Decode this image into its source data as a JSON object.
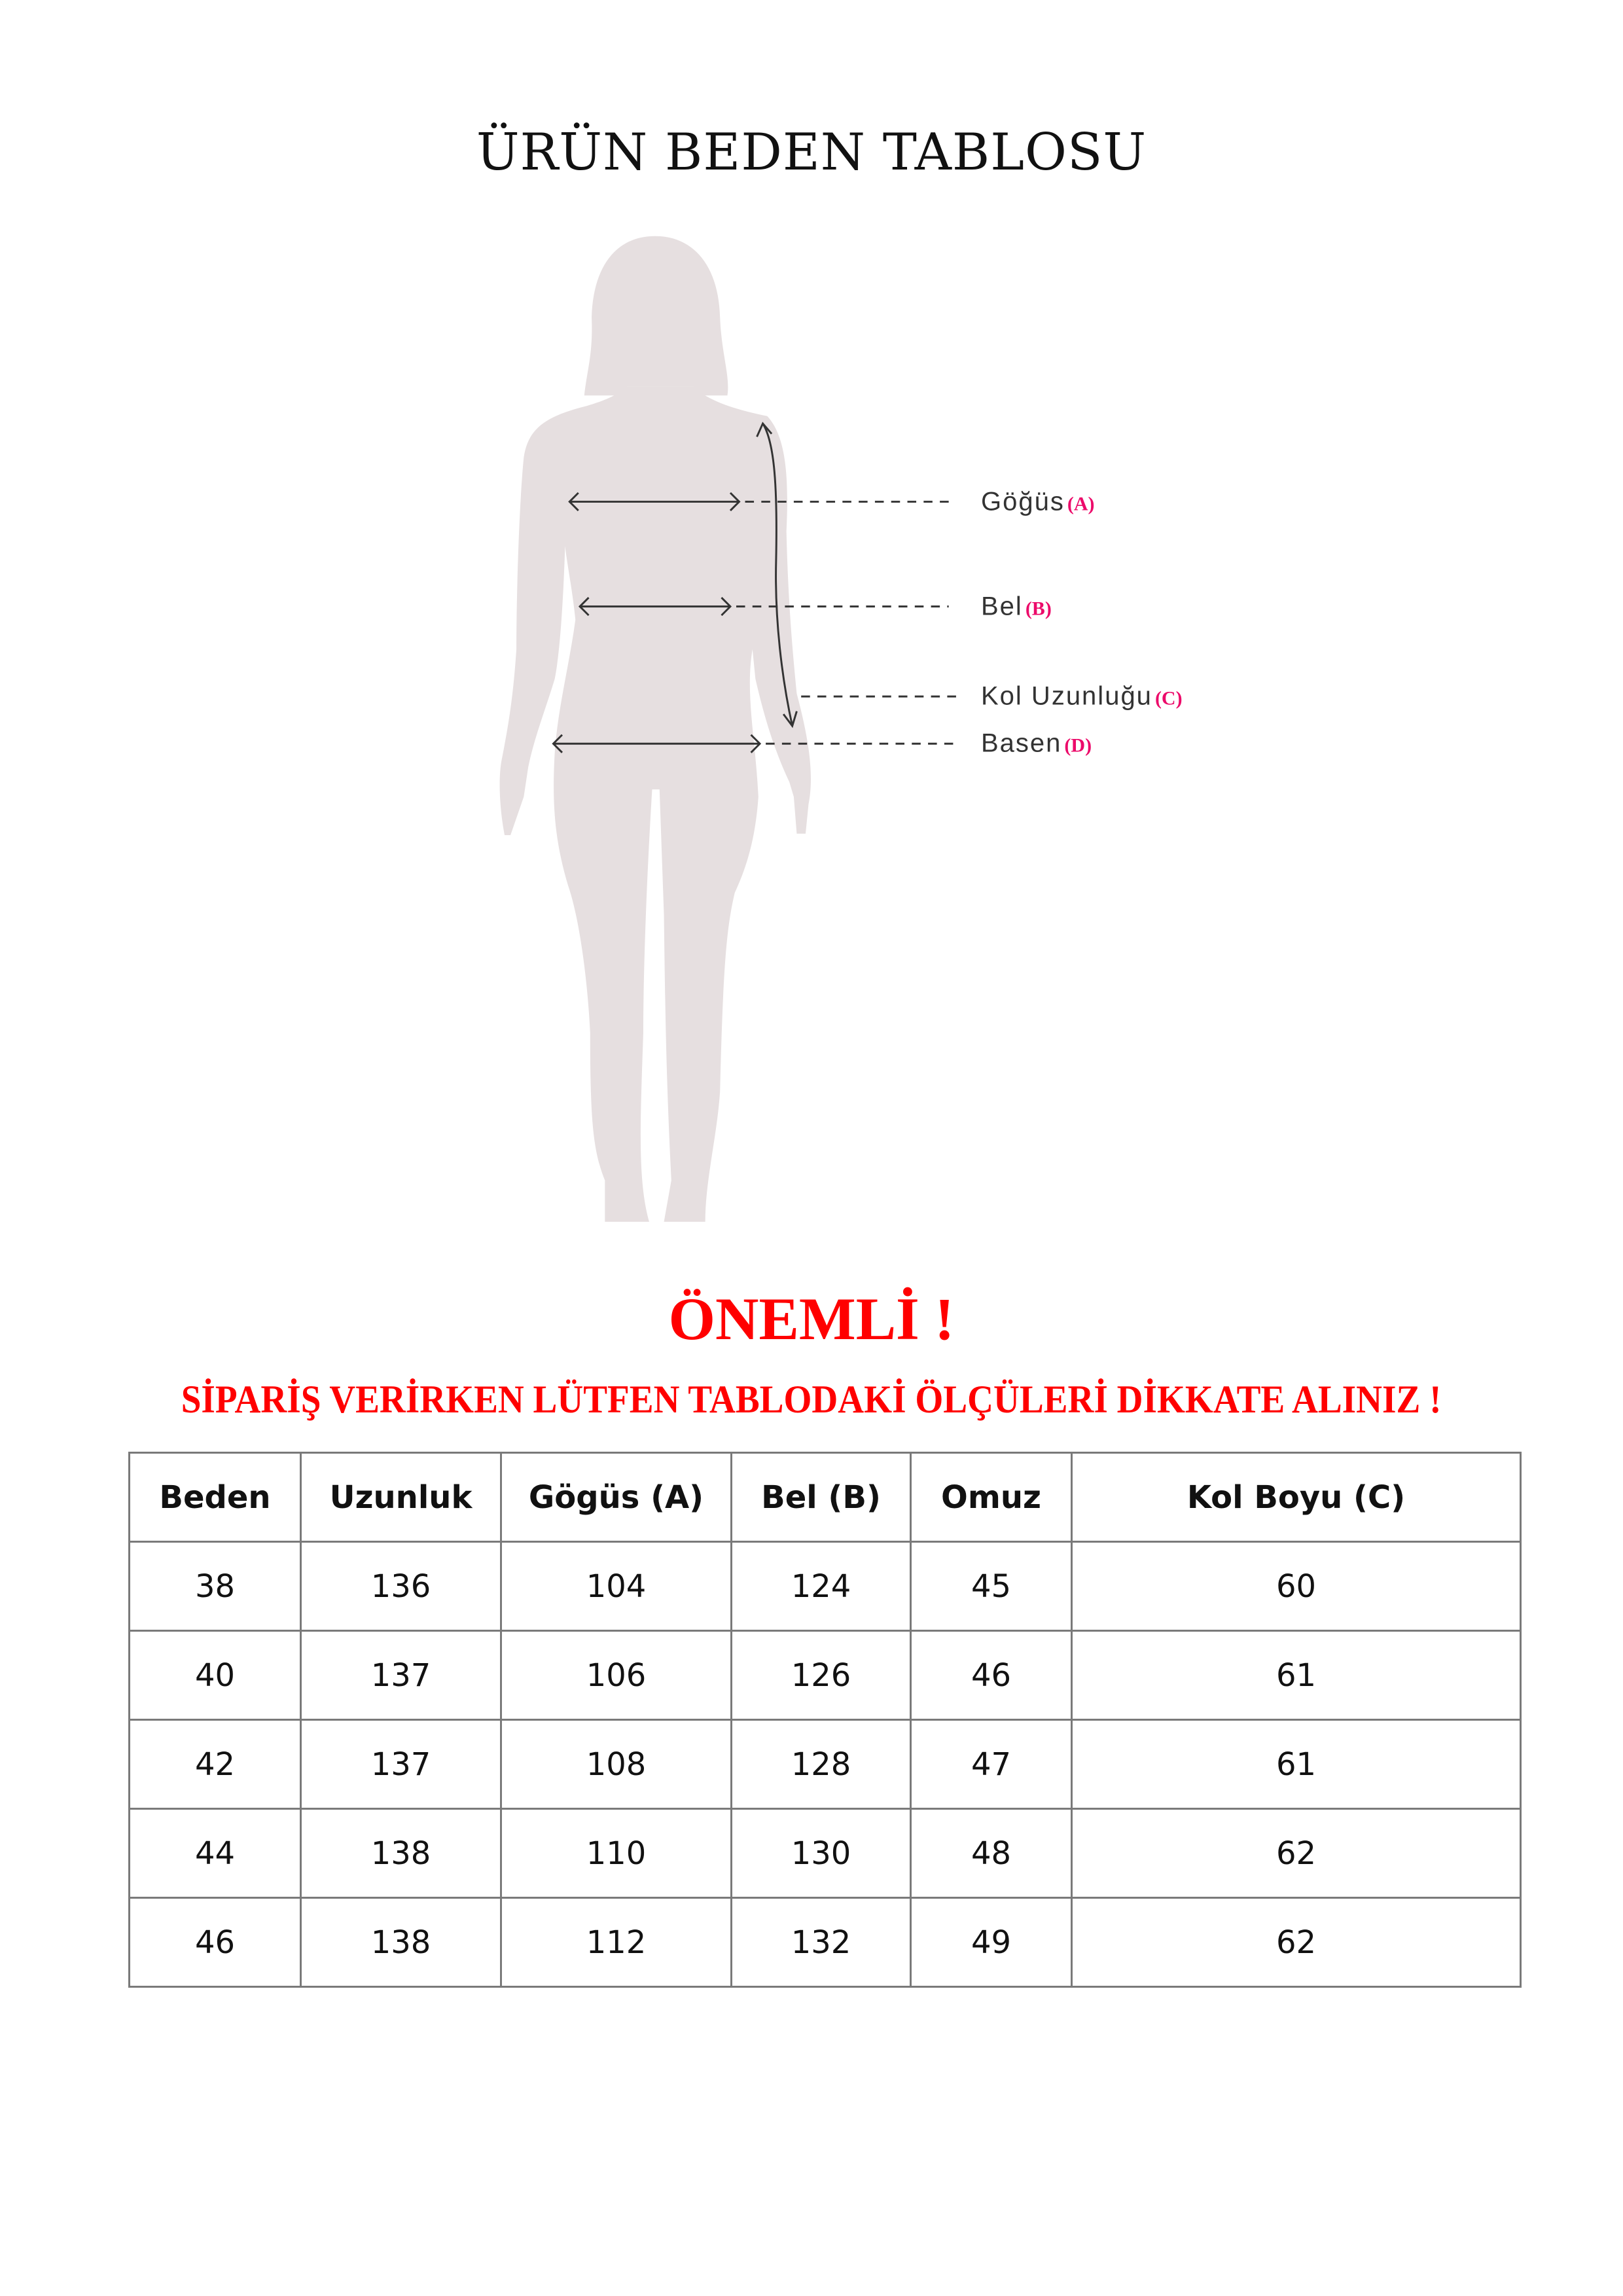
{
  "title": "ÜRÜN BEDEN TABLOSU",
  "figure": {
    "silhouette_color": "#e6dfe0",
    "labels": [
      {
        "name": "Göğüs",
        "code": "(A)"
      },
      {
        "name": "Bel",
        "code": "(B)"
      },
      {
        "name": "Kol Uzunluğu",
        "code": "(C)"
      },
      {
        "name": "Basen",
        "code": "(D)"
      }
    ],
    "code_color": "#ec0a6a"
  },
  "important": "ÖNEMLİ !",
  "notice": "SİPARİŞ VERİRKEN LÜTFEN TABLODAKİ ÖLÇÜLERİ DİKKATE ALINIZ !",
  "warning_color": "#ff0000",
  "table": {
    "headers": [
      "Beden",
      "Uzunluk",
      "Gögüs (A)",
      "Bel (B)",
      "Omuz",
      "Kol Boyu (C)"
    ],
    "rows": [
      [
        "38",
        "136",
        "104",
        "124",
        "45",
        "60"
      ],
      [
        "40",
        "137",
        "106",
        "126",
        "46",
        "61"
      ],
      [
        "42",
        "137",
        "108",
        "128",
        "47",
        "61"
      ],
      [
        "44",
        "138",
        "110",
        "130",
        "48",
        "62"
      ],
      [
        "46",
        "138",
        "112",
        "132",
        "49",
        "62"
      ]
    ]
  }
}
